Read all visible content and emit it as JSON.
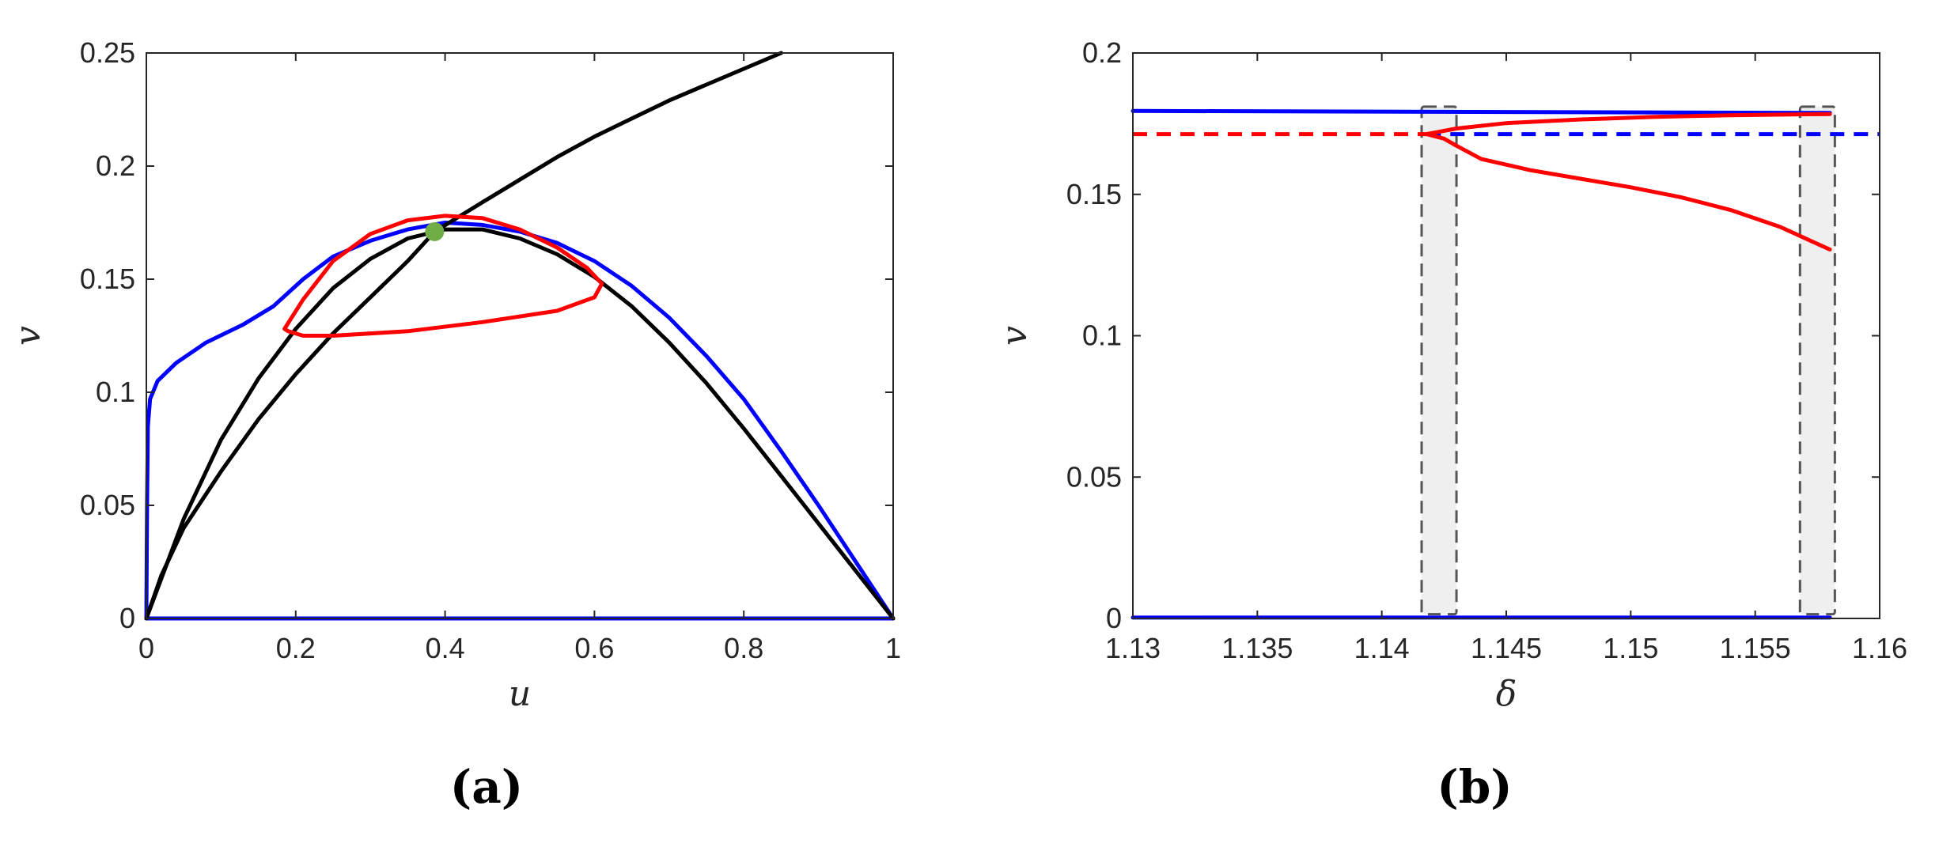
{
  "chart_data": [
    {
      "type": "line",
      "panel_label": "(a)",
      "xlabel": "u",
      "ylabel": "v",
      "xlim": [
        0,
        1
      ],
      "ylim": [
        0,
        0.25
      ],
      "xticks": [
        0,
        0.2,
        0.4,
        0.6,
        0.8,
        1
      ],
      "xtick_labels": [
        "0",
        "0.2",
        "0.4",
        "0.6",
        "0.8",
        "1"
      ],
      "yticks": [
        0,
        0.05,
        0.1,
        0.15,
        0.2,
        0.25
      ],
      "ytick_labels": [
        "0",
        "0.05",
        "0.1",
        "0.15",
        "0.2",
        "0.25"
      ],
      "grid": false,
      "series": [
        {
          "color": "#0000ff",
          "style": "solid",
          "points": [
            [
              0,
              0
            ],
            [
              1,
              0
            ]
          ]
        },
        {
          "color": "#0000ff",
          "style": "solid",
          "points": [
            [
              0,
              0
            ],
            [
              0.001,
              0.05
            ],
            [
              0.002,
              0.085
            ],
            [
              0.005,
              0.097
            ],
            [
              0.015,
              0.105
            ],
            [
              0.04,
              0.113
            ],
            [
              0.08,
              0.122
            ],
            [
              0.13,
              0.13
            ],
            [
              0.17,
              0.138
            ],
            [
              0.21,
              0.15
            ],
            [
              0.25,
              0.16
            ],
            [
              0.3,
              0.167
            ],
            [
              0.35,
              0.172
            ],
            [
              0.4,
              0.175
            ],
            [
              0.45,
              0.174
            ],
            [
              0.5,
              0.171
            ],
            [
              0.55,
              0.166
            ],
            [
              0.6,
              0.158
            ],
            [
              0.65,
              0.147
            ],
            [
              0.7,
              0.133
            ],
            [
              0.75,
              0.116
            ],
            [
              0.8,
              0.097
            ],
            [
              0.85,
              0.074
            ],
            [
              0.9,
              0.05
            ],
            [
              0.95,
              0.025
            ],
            [
              1,
              0
            ]
          ]
        },
        {
          "color": "#000000",
          "style": "solid",
          "points": [
            [
              0,
              0
            ],
            [
              0.05,
              0.044
            ],
            [
              0.1,
              0.079
            ],
            [
              0.15,
              0.106
            ],
            [
              0.2,
              0.128
            ],
            [
              0.25,
              0.146
            ],
            [
              0.3,
              0.159
            ],
            [
              0.35,
              0.168
            ],
            [
              0.4,
              0.172
            ],
            [
              0.45,
              0.172
            ],
            [
              0.5,
              0.168
            ],
            [
              0.55,
              0.161
            ],
            [
              0.6,
              0.151
            ],
            [
              0.65,
              0.138
            ],
            [
              0.7,
              0.122
            ],
            [
              0.75,
              0.104
            ],
            [
              0.8,
              0.084
            ],
            [
              0.85,
              0.063
            ],
            [
              0.9,
              0.042
            ],
            [
              0.95,
              0.021
            ],
            [
              1,
              0
            ]
          ]
        },
        {
          "color": "#000000",
          "style": "solid",
          "points": [
            [
              0,
              0
            ],
            [
              0.02,
              0.019
            ],
            [
              0.05,
              0.04
            ],
            [
              0.1,
              0.065
            ],
            [
              0.15,
              0.088
            ],
            [
              0.2,
              0.108
            ],
            [
              0.25,
              0.126
            ],
            [
              0.3,
              0.142
            ],
            [
              0.35,
              0.158
            ],
            [
              0.386,
              0.171
            ],
            [
              0.45,
              0.184
            ],
            [
              0.5,
              0.194
            ],
            [
              0.55,
              0.204
            ],
            [
              0.6,
              0.213
            ],
            [
              0.65,
              0.221
            ],
            [
              0.7,
              0.229
            ],
            [
              0.75,
              0.236
            ],
            [
              0.8,
              0.243
            ],
            [
              0.85,
              0.25
            ]
          ]
        },
        {
          "color": "#ff0000",
          "style": "solid",
          "closed": true,
          "points": [
            [
              0.185,
              0.128
            ],
            [
              0.21,
              0.141
            ],
            [
              0.25,
              0.158
            ],
            [
              0.3,
              0.17
            ],
            [
              0.35,
              0.176
            ],
            [
              0.4,
              0.178
            ],
            [
              0.45,
              0.177
            ],
            [
              0.5,
              0.172
            ],
            [
              0.55,
              0.164
            ],
            [
              0.59,
              0.155
            ],
            [
              0.61,
              0.148
            ],
            [
              0.6,
              0.142
            ],
            [
              0.55,
              0.136
            ],
            [
              0.45,
              0.131
            ],
            [
              0.35,
              0.127
            ],
            [
              0.25,
              0.125
            ],
            [
              0.21,
              0.125
            ],
            [
              0.19,
              0.127
            ]
          ]
        }
      ],
      "markers": [
        {
          "x": 0.386,
          "y": 0.171,
          "color": "#70ad47"
        }
      ]
    },
    {
      "type": "line",
      "panel_label": "(b)",
      "xlabel": "δ",
      "ylabel": "v",
      "xlim": [
        1.13,
        1.16
      ],
      "ylim": [
        0,
        0.2
      ],
      "xticks": [
        1.13,
        1.135,
        1.14,
        1.145,
        1.15,
        1.155,
        1.16
      ],
      "xtick_labels": [
        "1.13",
        "1.135",
        "1.14",
        "1.145",
        "1.15",
        "1.155",
        "1.16"
      ],
      "yticks": [
        0,
        0.05,
        0.1,
        0.15,
        0.2
      ],
      "ytick_labels": [
        "0",
        "0.05",
        "0.1",
        "0.15",
        "0.2"
      ],
      "grid": false,
      "series": [
        {
          "color": "#0000ff",
          "style": "solid",
          "points": [
            [
              1.13,
              0.1795
            ],
            [
              1.158,
              0.1788
            ]
          ]
        },
        {
          "color": "#0000ff",
          "style": "solid",
          "points": [
            [
              1.13,
              0.0003
            ],
            [
              1.158,
              0.0003
            ]
          ]
        },
        {
          "color": "#ff0000",
          "style": "dashed",
          "points": [
            [
              1.13,
              0.1713
            ],
            [
              1.1418,
              0.1713
            ]
          ]
        },
        {
          "color": "#0000ff",
          "style": "dashed",
          "points": [
            [
              1.1418,
              0.1713
            ],
            [
              1.16,
              0.1713
            ]
          ]
        },
        {
          "color": "#ff0000",
          "style": "solid",
          "points": [
            [
              1.1418,
              0.1713
            ],
            [
              1.143,
              0.1733
            ],
            [
              1.145,
              0.1752
            ],
            [
              1.148,
              0.1765
            ],
            [
              1.151,
              0.1774
            ],
            [
              1.154,
              0.178
            ],
            [
              1.1568,
              0.1783
            ],
            [
              1.158,
              0.1784
            ]
          ]
        },
        {
          "color": "#ff0000",
          "style": "solid",
          "points": [
            [
              1.1418,
              0.1713
            ],
            [
              1.1425,
              0.1697
            ],
            [
              1.143,
              0.1672
            ],
            [
              1.144,
              0.1625
            ],
            [
              1.146,
              0.1585
            ],
            [
              1.148,
              0.1555
            ],
            [
              1.15,
              0.1525
            ],
            [
              1.152,
              0.149
            ],
            [
              1.154,
              0.1445
            ],
            [
              1.156,
              0.1385
            ],
            [
              1.157,
              0.1345
            ],
            [
              1.158,
              0.1305
            ]
          ]
        }
      ],
      "shaded_regions": [
        {
          "x0": 1.1416,
          "x1": 1.143,
          "y0": 0.0015,
          "y1": 0.181,
          "fill": "#efefef",
          "stroke": "#555555",
          "style": "dashed"
        },
        {
          "x0": 1.1568,
          "x1": 1.1582,
          "y0": 0.0015,
          "y1": 0.181,
          "fill": "#efefef",
          "stroke": "#555555",
          "style": "dashed"
        }
      ]
    }
  ]
}
